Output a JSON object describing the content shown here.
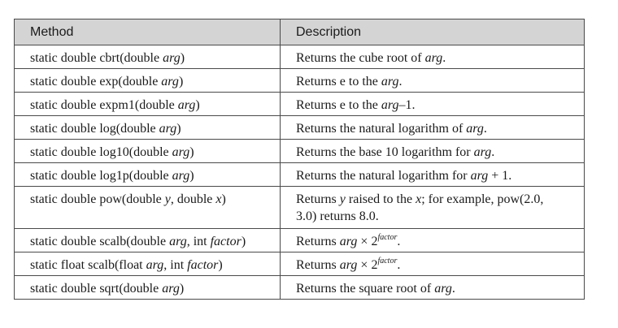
{
  "table": {
    "headers": [
      "Method",
      "Description"
    ],
    "rows": [
      {
        "method": {
          "pre": "static double cbrt(double ",
          "arg": "arg",
          "post": ")"
        },
        "desc": {
          "pre": "Returns the cube root of ",
          "arg": "arg",
          "post": "."
        }
      },
      {
        "method": {
          "pre": "static double exp(double ",
          "arg": "arg",
          "post": ")"
        },
        "desc": {
          "pre": "Returns e to the ",
          "arg": "arg",
          "post": "."
        }
      },
      {
        "method": {
          "pre": "static double expm1(double ",
          "arg": "arg",
          "post": ")"
        },
        "desc": {
          "pre": "Returns e to the ",
          "arg": "arg",
          "post": "–1."
        }
      },
      {
        "method": {
          "pre": "static double log(double ",
          "arg": "arg",
          "post": ")"
        },
        "desc": {
          "pre": "Returns the natural logarithm of ",
          "arg": "arg",
          "post": "."
        }
      },
      {
        "method": {
          "pre": "static double log10(double ",
          "arg": "arg",
          "post": ")"
        },
        "desc": {
          "pre": "Returns the base 10 logarithm for ",
          "arg": "arg",
          "post": "."
        }
      },
      {
        "method": {
          "pre": "static double log1p(double ",
          "arg": "arg",
          "post": ")"
        },
        "desc": {
          "pre": "Returns the natural logarithm for ",
          "arg": "arg",
          "post": " + 1."
        }
      },
      {
        "method": {
          "pre": "static double pow(double ",
          "arg1": "y",
          "mid": ", double ",
          "arg2": "x",
          "post": ")"
        },
        "desc": {
          "pre": "Returns ",
          "arg1": "y",
          "mid": " raised to the ",
          "arg2": "x",
          "post": "; for example, pow(2.0, 3.0) returns 8.0."
        }
      },
      {
        "method": {
          "pre": "static double scalb(double ",
          "arg1": "arg",
          "mid": ", int ",
          "arg2": "factor",
          "post": ")"
        },
        "desc": {
          "pre": "Returns ",
          "arg": "arg",
          "mid": " × 2",
          "sup": "factor",
          "post": "."
        }
      },
      {
        "method": {
          "pre": "static float scalb(float ",
          "arg1": "arg",
          "mid": ", int ",
          "arg2": "factor",
          "post": ")"
        },
        "desc": {
          "pre": "Returns ",
          "arg": "arg",
          "mid": " × 2",
          "sup": "factor",
          "post": "."
        }
      },
      {
        "method": {
          "pre": "static double sqrt(double ",
          "arg": "arg",
          "post": ")"
        },
        "desc": {
          "pre": "Returns the square root of ",
          "arg": "arg",
          "post": "."
        }
      }
    ]
  }
}
